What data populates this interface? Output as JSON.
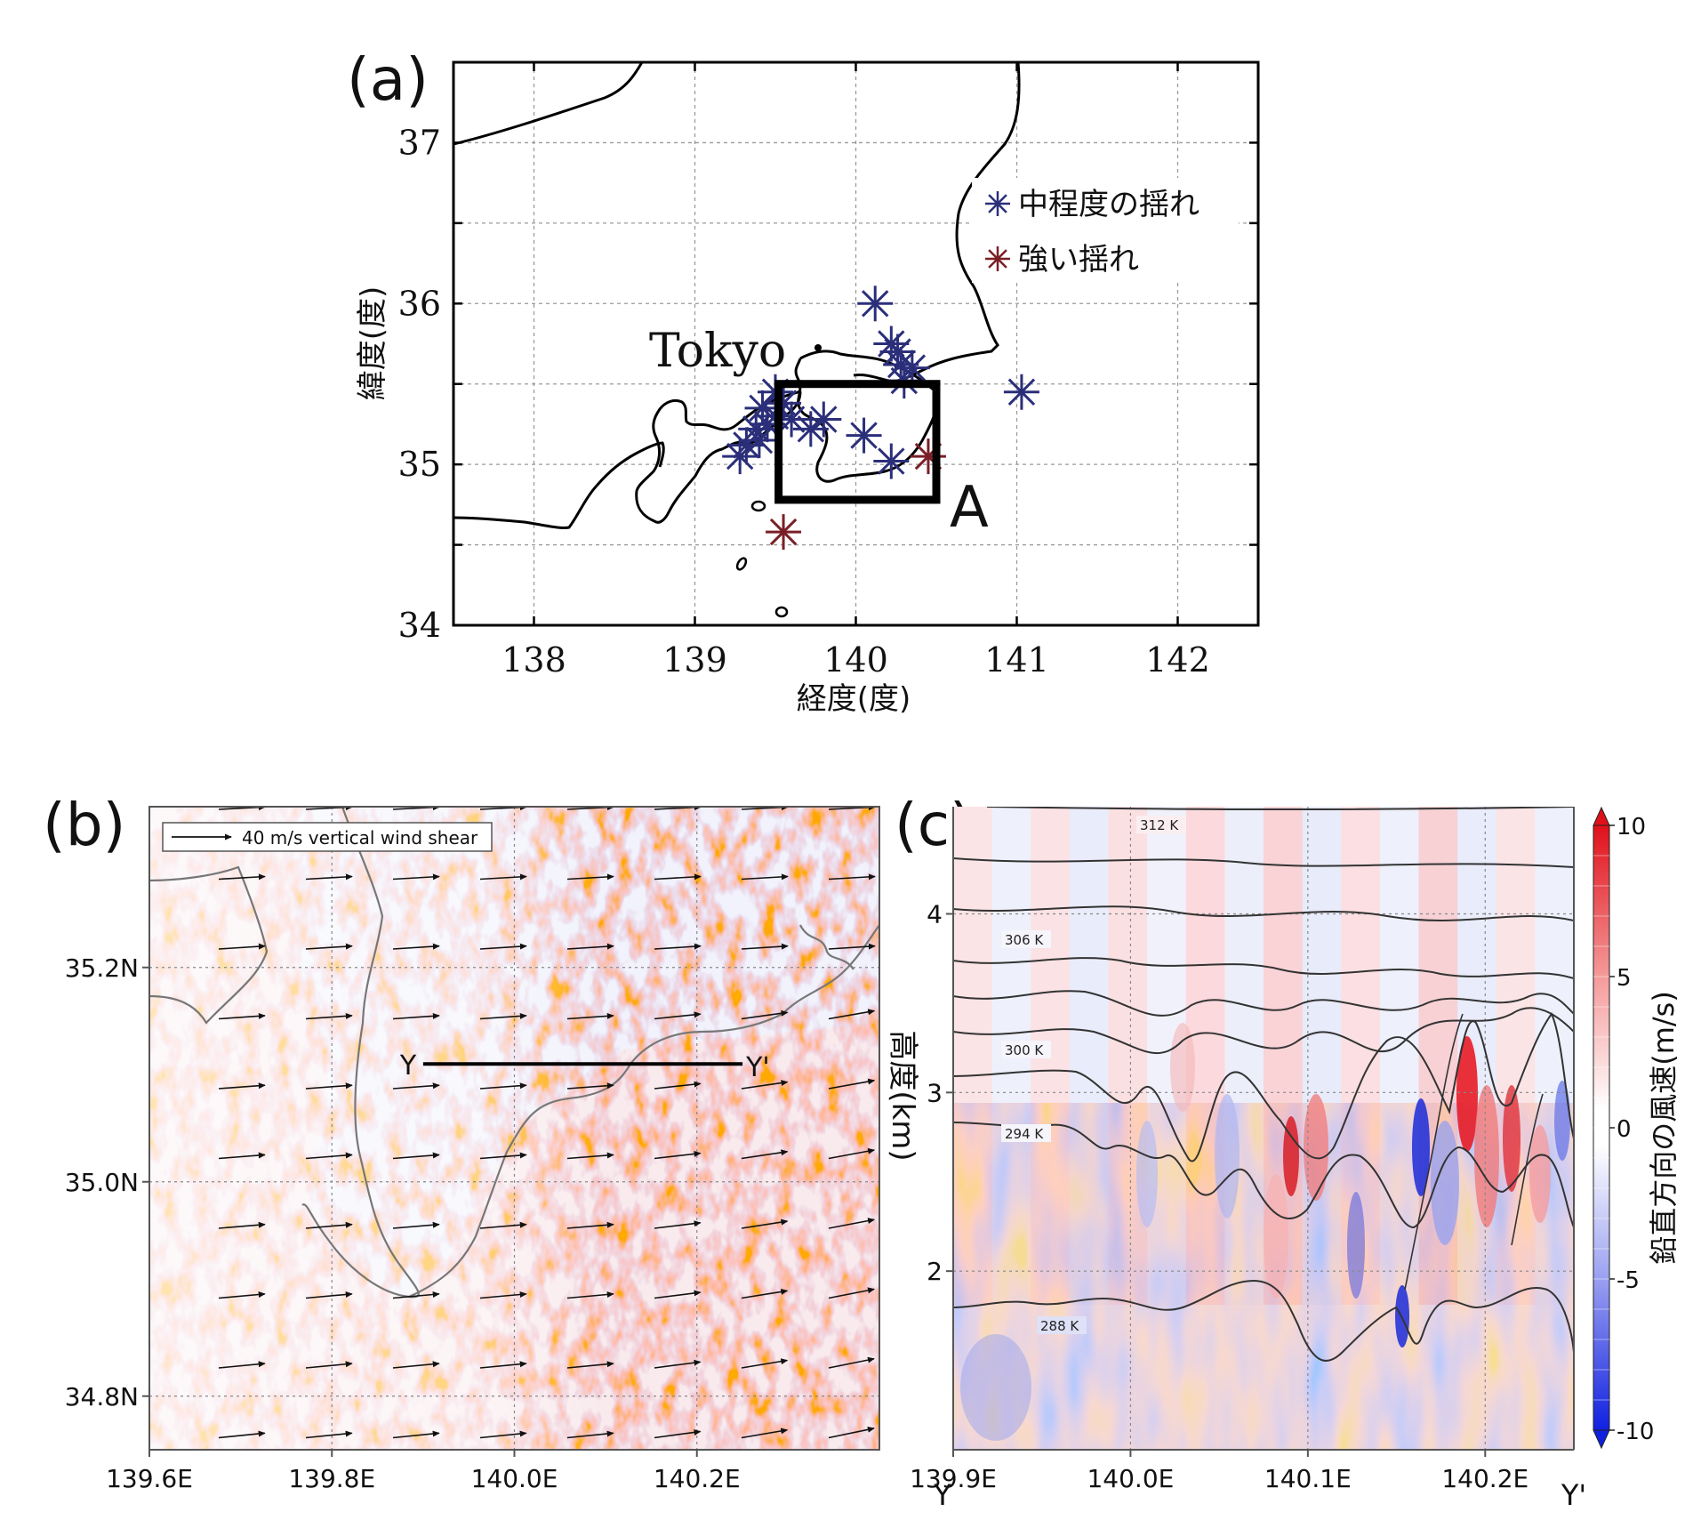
{
  "chart_data": [
    {
      "type": "scatter",
      "panel_label": "(a)",
      "xlabel": "経度(度)",
      "ylabel": "緯度(度)",
      "xlim": [
        137.5,
        142.5
      ],
      "ylim": [
        34,
        37.5
      ],
      "xticks": [
        "138",
        "139",
        "140",
        "141",
        "142"
      ],
      "yticks": [
        "34",
        "35",
        "36",
        "37"
      ],
      "grid": true,
      "legend_position": "top-right",
      "city_label": "Tokyo",
      "box_label": "A",
      "box_region": {
        "lon": [
          139.52,
          140.5
        ],
        "lat": [
          34.78,
          35.5
        ]
      },
      "series": [
        {
          "name": "中程度の揺れ",
          "color": "#2b2f7a",
          "points": [
            [
              140.12,
              36.0
            ],
            [
              140.22,
              35.75
            ],
            [
              140.26,
              35.7
            ],
            [
              140.28,
              35.62
            ],
            [
              140.35,
              35.6
            ],
            [
              140.3,
              35.52
            ],
            [
              139.5,
              35.45
            ],
            [
              139.55,
              35.38
            ],
            [
              139.42,
              35.35
            ],
            [
              139.5,
              35.3
            ],
            [
              139.45,
              35.25
            ],
            [
              139.38,
              35.22
            ],
            [
              139.6,
              35.28
            ],
            [
              139.8,
              35.28
            ],
            [
              139.72,
              35.22
            ],
            [
              140.05,
              35.18
            ],
            [
              139.32,
              35.12
            ],
            [
              139.28,
              35.05
            ],
            [
              139.4,
              35.15
            ],
            [
              140.22,
              35.02
            ],
            [
              141.03,
              35.45
            ]
          ]
        },
        {
          "name": "強い揺れ",
          "color": "#7a1f26",
          "points": [
            [
              140.45,
              35.05
            ],
            [
              139.55,
              34.58
            ]
          ]
        }
      ]
    },
    {
      "type": "heatmap",
      "panel_label": "(b)",
      "legend_text": "40 m/s vertical wind shear",
      "xticks": [
        "139.6E",
        "139.8E",
        "140.0E",
        "140.2E"
      ],
      "yticks": [
        "34.8N",
        "35.0N",
        "35.2N"
      ],
      "xlim": [
        139.6,
        140.4
      ],
      "ylim": [
        34.75,
        35.35
      ],
      "grid": true,
      "section_start_label": "Y",
      "section_end_label": "Y'",
      "section_line": {
        "lat": 35.11,
        "lon": [
          139.9,
          140.25
        ]
      }
    },
    {
      "type": "heatmap",
      "panel_label": "(c)",
      "ylabel": "高度(km)",
      "xticks": [
        "139.9E",
        "140.0E",
        "140.1E",
        "140.2E"
      ],
      "yticks": [
        "2",
        "3",
        "4"
      ],
      "xlim": [
        139.9,
        140.25
      ],
      "ylim": [
        1,
        4.6
      ],
      "x_end_labels": [
        "Y",
        "Y'"
      ],
      "contour_labels": [
        "312 K",
        "306 K",
        "300 K",
        "294 K",
        "288 K"
      ],
      "colorbar": {
        "label": "鉛直方向の風速(m/s)",
        "ticks": [
          "10",
          "5",
          "0",
          "-5",
          "-10"
        ],
        "range": [
          -10,
          10
        ]
      }
    }
  ]
}
